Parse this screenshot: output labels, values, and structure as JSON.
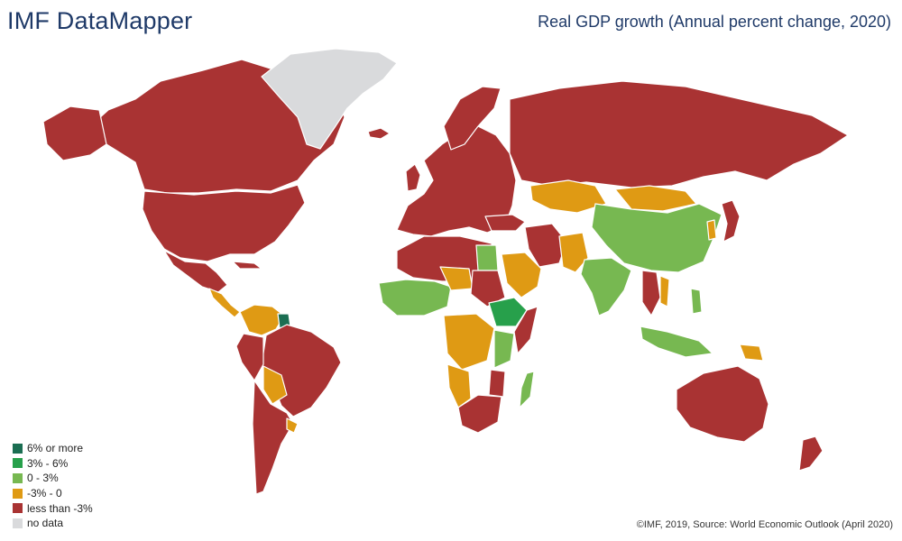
{
  "header": {
    "app_title": "IMF DataMapper",
    "map_title": "Real GDP growth (Annual percent change, 2020)"
  },
  "colors": {
    "six_or_more": "#1b6e52",
    "three_to_six": "#27a04b",
    "zero_to_three": "#77b851",
    "minus3_to_0": "#df9a14",
    "less_than_minus3": "#a93333",
    "no_data": "#d9dadc"
  },
  "legend": {
    "items": [
      {
        "label": "6% or more",
        "color": "#1b6e52"
      },
      {
        "label": "3% - 6%",
        "color": "#27a04b"
      },
      {
        "label": "0 - 3%",
        "color": "#77b851"
      },
      {
        "label": " -3% - 0",
        "color": "#df9a14"
      },
      {
        "label": "less than -3%",
        "color": "#a93333"
      },
      {
        "label": "no data",
        "color": "#d9dadc"
      }
    ]
  },
  "footer": {
    "credit": "©IMF, 2019, Source: World Economic Outlook (April 2020)"
  }
}
